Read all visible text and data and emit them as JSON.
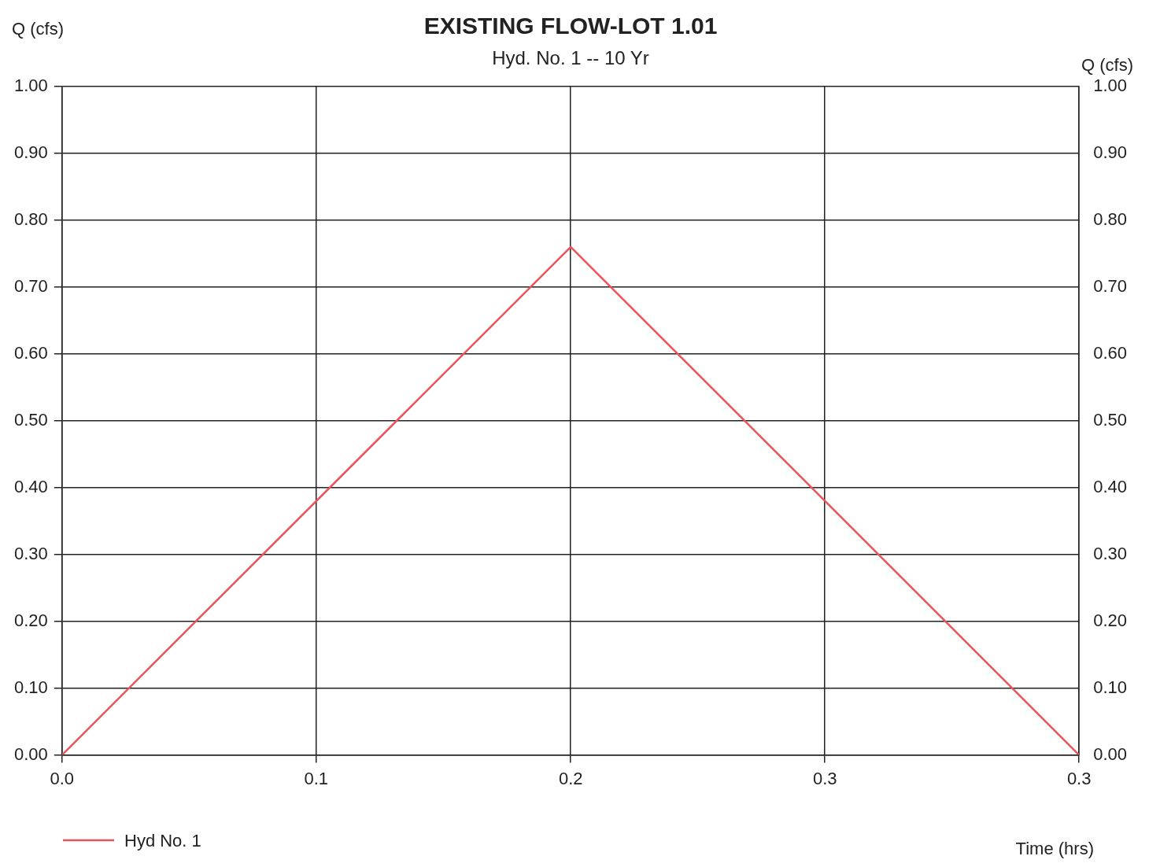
{
  "chart_data": {
    "type": "line",
    "title": "EXISTING FLOW-LOT 1.01",
    "subtitle": "Hyd. No. 1 -- 10 Yr",
    "xlabel": "Time (hrs)",
    "ylabel": "Q (cfs)",
    "y2label": "Q (cfs)",
    "series": [
      {
        "name": "Hyd No. 1",
        "color": "#e8545a",
        "x": [
          0,
          0.1667,
          0.3333
        ],
        "values": [
          0,
          0.76,
          0
        ]
      }
    ],
    "xlim": [
      0,
      0.3333
    ],
    "xticks": [
      {
        "value": 0,
        "label": "0.0"
      },
      {
        "value": 0.0833,
        "label": "0.1"
      },
      {
        "value": 0.1667,
        "label": "0.2"
      },
      {
        "value": 0.25,
        "label": "0.3"
      },
      {
        "value": 0.3333,
        "label": "0.3"
      }
    ],
    "ylim": [
      0,
      1
    ],
    "yticks": [
      {
        "value": 0,
        "label": "0.00"
      },
      {
        "value": 0.1,
        "label": "0.10"
      },
      {
        "value": 0.2,
        "label": "0.20"
      },
      {
        "value": 0.3,
        "label": "0.30"
      },
      {
        "value": 0.4,
        "label": "0.40"
      },
      {
        "value": 0.5,
        "label": "0.50"
      },
      {
        "value": 0.6,
        "label": "0.60"
      },
      {
        "value": 0.7,
        "label": "0.70"
      },
      {
        "value": 0.8,
        "label": "0.80"
      },
      {
        "value": 0.9,
        "label": "0.90"
      },
      {
        "value": 1,
        "label": "1.00"
      }
    ],
    "y2lim": [
      0,
      1
    ],
    "y2ticks": [
      {
        "value": 0,
        "label": "0.00"
      },
      {
        "value": 0.1,
        "label": "0.10"
      },
      {
        "value": 0.2,
        "label": "0.20"
      },
      {
        "value": 0.3,
        "label": "0.30"
      },
      {
        "value": 0.4,
        "label": "0.40"
      },
      {
        "value": 0.5,
        "label": "0.50"
      },
      {
        "value": 0.6,
        "label": "0.60"
      },
      {
        "value": 0.7,
        "label": "0.70"
      },
      {
        "value": 0.8,
        "label": "0.80"
      },
      {
        "value": 0.9,
        "label": "0.90"
      },
      {
        "value": 1,
        "label": "1.00"
      }
    ],
    "grid": true,
    "legend": "bottom left",
    "marker": "none",
    "line_style": "solid"
  }
}
